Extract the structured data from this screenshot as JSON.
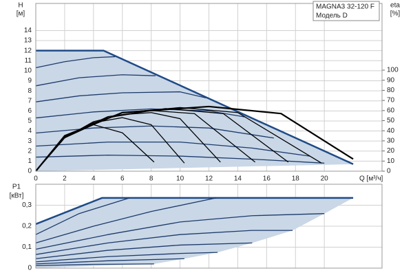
{
  "chart_data": [
    {
      "type": "line",
      "title": "MAGNA3 32-120 F",
      "subtitle": "Модель D",
      "ylabel": "H",
      "yunit": "[м]",
      "y2label": "eta",
      "y2unit": "[%]",
      "xlabel": "Q [м³/ч]",
      "xlim": [
        0,
        24
      ],
      "xticks": [
        0,
        2,
        4,
        6,
        8,
        10,
        12,
        14,
        16,
        18,
        20
      ],
      "ylim": [
        0,
        16.7
      ],
      "yticks": [
        0,
        1,
        2,
        3,
        4,
        5,
        6,
        7,
        8,
        9,
        10,
        11,
        12,
        13,
        14
      ],
      "y2lim": [
        0,
        166
      ],
      "y2ticks": [
        0,
        10,
        20,
        30,
        40,
        50,
        60,
        70,
        80,
        90,
        100
      ],
      "grid": true,
      "area": {
        "color": "#c9d7e7",
        "x": [
          0,
          4.7,
          22,
          0
        ],
        "values": [
          12,
          12,
          0.7,
          0
        ]
      },
      "series": [
        {
          "color": "#1f4a86",
          "line_width": 2.5,
          "x": [
            0,
            4.7,
            22
          ],
          "values": [
            12,
            12,
            0.7
          ]
        },
        {
          "color": "#1d3a6a",
          "line_width": 1.3,
          "x": [
            0,
            2,
            4,
            5.5
          ],
          "values": [
            10.3,
            10.9,
            11.3,
            11.4
          ]
        },
        {
          "color": "#1d3a6a",
          "line_width": 1.3,
          "x": [
            0,
            3,
            6,
            8.3
          ],
          "values": [
            8.5,
            9.3,
            9.6,
            9.5
          ]
        },
        {
          "color": "#1d3a6a",
          "line_width": 1.3,
          "x": [
            0,
            3,
            6,
            10,
            11.8
          ],
          "values": [
            6.9,
            7.5,
            7.8,
            7.9,
            7.3
          ]
        },
        {
          "color": "#1d3a6a",
          "line_width": 1.3,
          "x": [
            0,
            4,
            8,
            12,
            14.5
          ],
          "values": [
            5.3,
            5.9,
            6.2,
            6.0,
            5.4
          ]
        },
        {
          "color": "#1d3a6a",
          "line_width": 1.3,
          "x": [
            0,
            4,
            8,
            12,
            16.5
          ],
          "values": [
            3.8,
            4.3,
            4.5,
            4.3,
            3.3
          ]
        },
        {
          "color": "#1d3a6a",
          "line_width": 1.3,
          "x": [
            0,
            5,
            10,
            15,
            19
          ],
          "values": [
            2.5,
            2.9,
            2.9,
            2.3,
            1.5
          ]
        },
        {
          "color": "#1d3a6a",
          "line_width": 1.3,
          "x": [
            0,
            5,
            10,
            15,
            20
          ],
          "values": [
            1.4,
            1.6,
            1.5,
            1.2,
            0.8
          ]
        },
        {
          "color": "#000000",
          "line_width": 1.3,
          "axis": "y2",
          "x": [
            0,
            2,
            4,
            6,
            8.2
          ],
          "values": [
            0,
            33,
            46,
            38,
            9
          ]
        },
        {
          "color": "#000000",
          "line_width": 1.3,
          "axis": "y2",
          "x": [
            0,
            2,
            4,
            6,
            8,
            10.3
          ],
          "values": [
            0,
            33,
            48,
            53,
            46,
            8
          ]
        },
        {
          "color": "#000000",
          "line_width": 1.3,
          "axis": "y2",
          "x": [
            0,
            2,
            4,
            6,
            8,
            10,
            12.8
          ],
          "values": [
            0,
            33,
            49,
            56,
            58,
            52,
            9
          ]
        },
        {
          "color": "#000000",
          "line_width": 1.3,
          "axis": "y2",
          "x": [
            0,
            2,
            5,
            8,
            11,
            15.2
          ],
          "values": [
            0,
            34,
            53,
            60,
            57,
            9
          ]
        },
        {
          "color": "#000000",
          "line_width": 1.3,
          "axis": "y2",
          "x": [
            0,
            2,
            5,
            9,
            13,
            17.5
          ],
          "values": [
            0,
            34,
            54,
            62,
            57,
            9
          ]
        },
        {
          "color": "#000000",
          "line_width": 1.3,
          "axis": "y2",
          "x": [
            0,
            2,
            6,
            10,
            14,
            19.8
          ],
          "values": [
            0,
            34,
            58,
            63,
            58,
            8
          ]
        },
        {
          "color": "#000000",
          "line_width": 2.2,
          "axis": "y2",
          "x": [
            0,
            2,
            6,
            12,
            17,
            22
          ],
          "values": [
            0,
            35,
            58,
            64,
            57,
            12
          ]
        }
      ]
    },
    {
      "type": "line",
      "ylabel": "P1",
      "yunit": "[кВт]",
      "xlim": [
        0,
        24
      ],
      "ylim": [
        0,
        0.4
      ],
      "yticks": [
        0,
        {
          "value": 0.1,
          "label": "0,1"
        },
        {
          "value": 0.2,
          "label": "0,2"
        },
        {
          "value": 0.3,
          "label": "0,3"
        }
      ],
      "grid": true,
      "area": {
        "color": "#c9d7e7",
        "x": [
          0,
          4.6,
          22,
          20,
          17.8,
          15,
          12.6,
          10.3,
          8.2,
          0
        ],
        "values": [
          0.21,
          0.335,
          0.335,
          0.26,
          0.18,
          0.12,
          0.075,
          0.045,
          0.02,
          0
        ]
      },
      "series": [
        {
          "color": "#1f4a86",
          "line_width": 2.5,
          "x": [
            0,
            4.6,
            22
          ],
          "values": [
            0.21,
            0.335,
            0.335
          ]
        },
        {
          "color": "#1d3a6a",
          "line_width": 1.3,
          "x": [
            0,
            3,
            6.5
          ],
          "values": [
            0.16,
            0.26,
            0.335
          ]
        },
        {
          "color": "#1d3a6a",
          "line_width": 1.3,
          "x": [
            0,
            4,
            8,
            12.5
          ],
          "values": [
            0.12,
            0.2,
            0.27,
            0.335
          ]
        },
        {
          "color": "#1d3a6a",
          "line_width": 1.3,
          "x": [
            0,
            5,
            10,
            15,
            20
          ],
          "values": [
            0.09,
            0.16,
            0.22,
            0.25,
            0.26
          ]
        },
        {
          "color": "#1d3a6a",
          "line_width": 1.3,
          "x": [
            0,
            5,
            10,
            15,
            17.8
          ],
          "values": [
            0.065,
            0.12,
            0.16,
            0.18,
            0.18
          ]
        },
        {
          "color": "#1d3a6a",
          "line_width": 1.3,
          "x": [
            0,
            5,
            10,
            15
          ],
          "values": [
            0.045,
            0.085,
            0.11,
            0.12
          ]
        },
        {
          "color": "#1d3a6a",
          "line_width": 1.3,
          "x": [
            0,
            5,
            10,
            12.6
          ],
          "values": [
            0.03,
            0.055,
            0.07,
            0.075
          ]
        },
        {
          "color": "#1d3a6a",
          "line_width": 1.3,
          "x": [
            0,
            5,
            10.3
          ],
          "values": [
            0.02,
            0.035,
            0.045
          ]
        },
        {
          "color": "#1d3a6a",
          "line_width": 1.3,
          "x": [
            0,
            4,
            8.2
          ],
          "values": [
            0.012,
            0.018,
            0.02
          ]
        }
      ]
    }
  ]
}
